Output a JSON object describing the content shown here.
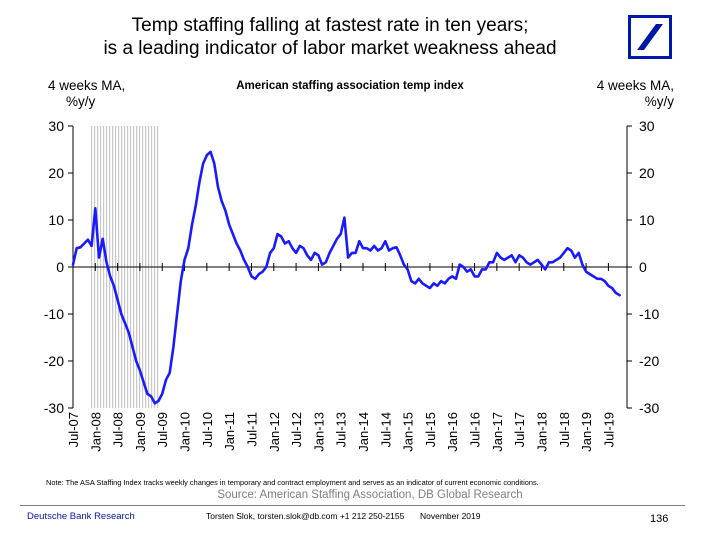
{
  "title_lines": [
    "Temp staffing falling at fastest rate in ten years;",
    "is a leading indicator of labor market weakness ahead"
  ],
  "colors": {
    "line": "#1a1aff",
    "recession_shade": "#c8c8c8",
    "brand": "#0018a8",
    "source_text": "#7f7f7f"
  },
  "logo_icon": "deutsche-bank-logo-icon",
  "chart_data": {
    "type": "line",
    "title": "American staffing association temp index",
    "ylabel_left": [
      "4 weeks MA,",
      "%y/y"
    ],
    "ylabel_right": [
      "4 weeks MA,",
      "%y/y"
    ],
    "ylim": [
      -30,
      30
    ],
    "yticks": [
      30,
      20,
      10,
      0,
      -10,
      -20,
      -30
    ],
    "xlim": [
      "2007-07",
      "2019-12"
    ],
    "xticks": [
      "Jul-07",
      "Jan-08",
      "Jul-08",
      "Jan-09",
      "Jul-09",
      "Jan-10",
      "Jul-10",
      "Jan-11",
      "Jul-11",
      "Jan-12",
      "Jul-12",
      "Jan-13",
      "Jul-13",
      "Jan-14",
      "Jul-14",
      "Jan-15",
      "Jul-15",
      "Jan-16",
      "Jul-16",
      "Jan-17",
      "Jul-17",
      "Jan-18",
      "Jul-18",
      "Jan-19",
      "Jul-19"
    ],
    "recession": [
      "2007-12",
      "2009-06"
    ],
    "grid": false,
    "series": [
      {
        "values": [
          [
            "2007-07",
            0.5
          ],
          [
            "2007-08",
            4.0
          ],
          [
            "2007-09",
            4.2
          ],
          [
            "2007-10",
            5.0
          ],
          [
            "2007-11",
            5.8
          ],
          [
            "2007-12",
            4.5
          ],
          [
            "2008-01",
            12.5
          ],
          [
            "2008-02",
            2.0
          ],
          [
            "2008-03",
            6.0
          ],
          [
            "2008-04",
            1.0
          ],
          [
            "2008-05",
            -2.0
          ],
          [
            "2008-06",
            -4.0
          ],
          [
            "2008-07",
            -7.0
          ],
          [
            "2008-08",
            -10.0
          ],
          [
            "2008-09",
            -12.0
          ],
          [
            "2008-10",
            -14.0
          ],
          [
            "2008-11",
            -17.0
          ],
          [
            "2008-12",
            -20.0
          ],
          [
            "2009-01",
            -22.0
          ],
          [
            "2009-02",
            -24.5
          ],
          [
            "2009-03",
            -27.0
          ],
          [
            "2009-04",
            -27.5
          ],
          [
            "2009-05",
            -29.0
          ],
          [
            "2009-06",
            -28.5
          ],
          [
            "2009-07",
            -27.0
          ],
          [
            "2009-08",
            -24.0
          ],
          [
            "2009-09",
            -22.5
          ],
          [
            "2009-10",
            -17.0
          ],
          [
            "2009-11",
            -10.0
          ],
          [
            "2009-12",
            -3.0
          ],
          [
            "2010-01",
            1.5
          ],
          [
            "2010-02",
            4.0
          ],
          [
            "2010-03",
            9.0
          ],
          [
            "2010-04",
            13.0
          ],
          [
            "2010-05",
            18.0
          ],
          [
            "2010-06",
            22.0
          ],
          [
            "2010-07",
            23.8
          ],
          [
            "2010-08",
            24.5
          ],
          [
            "2010-09",
            22.0
          ],
          [
            "2010-10",
            17.0
          ],
          [
            "2010-11",
            14.0
          ],
          [
            "2010-12",
            12.0
          ],
          [
            "2011-01",
            9.0
          ],
          [
            "2011-02",
            7.0
          ],
          [
            "2011-03",
            5.0
          ],
          [
            "2011-04",
            3.5
          ],
          [
            "2011-05",
            1.5
          ],
          [
            "2011-06",
            0.0
          ],
          [
            "2011-07",
            -2.0
          ],
          [
            "2011-08",
            -2.5
          ],
          [
            "2011-09",
            -1.5
          ],
          [
            "2011-10",
            -1.0
          ],
          [
            "2011-11",
            0.0
          ],
          [
            "2011-12",
            3.0
          ],
          [
            "2012-01",
            4.0
          ],
          [
            "2012-02",
            7.0
          ],
          [
            "2012-03",
            6.5
          ],
          [
            "2012-04",
            5.0
          ],
          [
            "2012-05",
            5.5
          ],
          [
            "2012-06",
            4.0
          ],
          [
            "2012-07",
            3.0
          ],
          [
            "2012-08",
            4.5
          ],
          [
            "2012-09",
            4.0
          ],
          [
            "2012-10",
            2.5
          ],
          [
            "2012-11",
            1.5
          ],
          [
            "2012-12",
            3.0
          ],
          [
            "2013-01",
            2.5
          ],
          [
            "2013-02",
            0.5
          ],
          [
            "2013-03",
            1.0
          ],
          [
            "2013-04",
            3.0
          ],
          [
            "2013-05",
            4.5
          ],
          [
            "2013-06",
            6.0
          ],
          [
            "2013-07",
            7.0
          ],
          [
            "2013-08",
            10.5
          ],
          [
            "2013-09",
            2.0
          ],
          [
            "2013-10",
            3.0
          ],
          [
            "2013-11",
            3.0
          ],
          [
            "2013-12",
            5.5
          ],
          [
            "2014-01",
            4.0
          ],
          [
            "2014-02",
            4.0
          ],
          [
            "2014-03",
            3.5
          ],
          [
            "2014-04",
            4.5
          ],
          [
            "2014-05",
            3.5
          ],
          [
            "2014-06",
            4.0
          ],
          [
            "2014-07",
            5.5
          ],
          [
            "2014-08",
            3.5
          ],
          [
            "2014-09",
            4.0
          ],
          [
            "2014-10",
            4.2
          ],
          [
            "2014-11",
            2.5
          ],
          [
            "2014-12",
            0.5
          ],
          [
            "2015-01",
            -0.5
          ],
          [
            "2015-02",
            -3.0
          ],
          [
            "2015-03",
            -3.5
          ],
          [
            "2015-04",
            -2.5
          ],
          [
            "2015-05",
            -3.5
          ],
          [
            "2015-06",
            -4.0
          ],
          [
            "2015-07",
            -4.5
          ],
          [
            "2015-08",
            -3.5
          ],
          [
            "2015-09",
            -4.0
          ],
          [
            "2015-10",
            -3.0
          ],
          [
            "2015-11",
            -3.5
          ],
          [
            "2015-12",
            -2.5
          ],
          [
            "2016-01",
            -2.0
          ],
          [
            "2016-02",
            -2.5
          ],
          [
            "2016-03",
            0.5
          ],
          [
            "2016-04",
            0.0
          ],
          [
            "2016-05",
            -1.0
          ],
          [
            "2016-06",
            -0.5
          ],
          [
            "2016-07",
            -2.0
          ],
          [
            "2016-08",
            -2.0
          ],
          [
            "2016-09",
            -0.5
          ],
          [
            "2016-10",
            -0.5
          ],
          [
            "2016-11",
            1.0
          ],
          [
            "2016-12",
            1.0
          ],
          [
            "2017-01",
            3.0
          ],
          [
            "2017-02",
            2.0
          ],
          [
            "2017-03",
            1.5
          ],
          [
            "2017-04",
            2.0
          ],
          [
            "2017-05",
            2.5
          ],
          [
            "2017-06",
            1.0
          ],
          [
            "2017-07",
            2.5
          ],
          [
            "2017-08",
            2.0
          ],
          [
            "2017-09",
            1.0
          ],
          [
            "2017-10",
            0.5
          ],
          [
            "2017-11",
            1.0
          ],
          [
            "2017-12",
            1.5
          ],
          [
            "2018-01",
            0.5
          ],
          [
            "2018-02",
            -0.5
          ],
          [
            "2018-03",
            1.0
          ],
          [
            "2018-04",
            1.0
          ],
          [
            "2018-05",
            1.5
          ],
          [
            "2018-06",
            2.0
          ],
          [
            "2018-07",
            3.0
          ],
          [
            "2018-08",
            4.0
          ],
          [
            "2018-09",
            3.5
          ],
          [
            "2018-10",
            2.0
          ],
          [
            "2018-11",
            3.0
          ],
          [
            "2018-12",
            0.5
          ],
          [
            "2019-01",
            -1.0
          ],
          [
            "2019-02",
            -1.5
          ],
          [
            "2019-03",
            -2.0
          ],
          [
            "2019-04",
            -2.5
          ],
          [
            "2019-05",
            -2.5
          ],
          [
            "2019-06",
            -3.0
          ],
          [
            "2019-07",
            -4.0
          ],
          [
            "2019-08",
            -4.5
          ],
          [
            "2019-09",
            -5.5
          ],
          [
            "2019-10",
            -6.0
          ]
        ]
      }
    ]
  },
  "note": "Note: The ASA Staffing Index tracks weekly changes in temporary and contract employment and serves as an indicator of current economic conditions.",
  "source": "Source: American Staffing Association, DB Global Research",
  "footer": {
    "brand": "Deutsche Bank Research",
    "author": "Torsten Slok, torsten.slok@db.com +1 212 250-2155",
    "date": "November 2019",
    "page": "136"
  }
}
